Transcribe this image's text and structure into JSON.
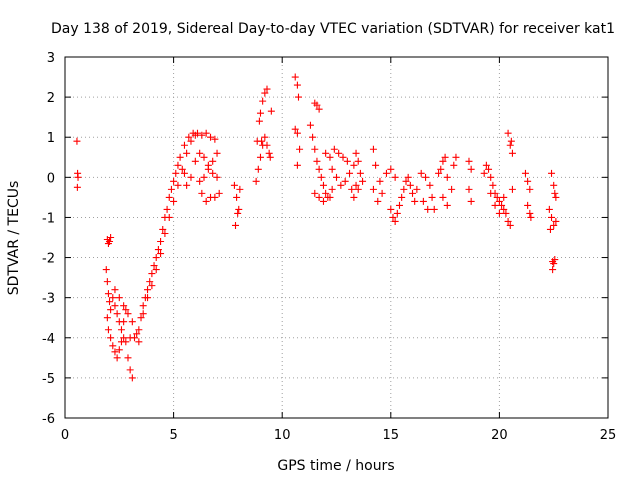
{
  "chart_data": {
    "type": "scatter",
    "title": "Day 138 of 2019, Sidereal Day-to-day VTEC variation (SDTVAR) for receiver kat1",
    "xlabel": "GPS time / hours",
    "ylabel": "SDTVAR / TECUs",
    "xlim": [
      0,
      25
    ],
    "ylim": [
      -6,
      3
    ],
    "xticks": [
      "0",
      "5",
      "10",
      "15",
      "20",
      "25"
    ],
    "yticks": [
      "-6",
      "-5",
      "-4",
      "-3",
      "-2",
      "-1",
      "0",
      "1",
      "2",
      "3"
    ],
    "grid": true,
    "marker": "+",
    "colors": {
      "series": "#ff0000"
    },
    "series": [
      {
        "name": "SDTVAR",
        "points": [
          [
            0.55,
            0.9
          ],
          [
            0.58,
            0.1
          ],
          [
            0.6,
            0.0
          ],
          [
            0.57,
            -0.25
          ],
          [
            1.95,
            -1.55
          ],
          [
            2.0,
            -1.65
          ],
          [
            2.05,
            -1.6
          ],
          [
            2.1,
            -1.5
          ],
          [
            1.9,
            -2.3
          ],
          [
            1.95,
            -2.6
          ],
          [
            2.0,
            -2.9
          ],
          [
            2.05,
            -3.1
          ],
          [
            2.1,
            -3.3
          ],
          [
            1.95,
            -3.5
          ],
          [
            2.0,
            -3.8
          ],
          [
            2.1,
            -4.0
          ],
          [
            2.2,
            -4.2
          ],
          [
            2.3,
            -4.35
          ],
          [
            2.4,
            -4.5
          ],
          [
            2.5,
            -4.3
          ],
          [
            2.6,
            -4.1
          ],
          [
            2.7,
            -4.0
          ],
          [
            2.8,
            -4.1
          ],
          [
            2.9,
            -4.5
          ],
          [
            3.0,
            -4.8
          ],
          [
            3.1,
            -5.0
          ],
          [
            2.2,
            -3.0
          ],
          [
            2.3,
            -3.2
          ],
          [
            2.4,
            -3.4
          ],
          [
            2.5,
            -3.6
          ],
          [
            2.6,
            -3.8
          ],
          [
            2.7,
            -3.6
          ],
          [
            2.8,
            -3.3
          ],
          [
            2.3,
            -2.8
          ],
          [
            2.5,
            -3.0
          ],
          [
            2.7,
            -3.2
          ],
          [
            2.9,
            -3.4
          ],
          [
            3.1,
            -3.6
          ],
          [
            3.3,
            -3.9
          ],
          [
            3.4,
            -4.1
          ],
          [
            3.0,
            -4.0
          ],
          [
            3.2,
            -4.0
          ],
          [
            3.4,
            -3.8
          ],
          [
            3.5,
            -3.5
          ],
          [
            3.6,
            -3.2
          ],
          [
            3.7,
            -3.0
          ],
          [
            3.8,
            -2.8
          ],
          [
            3.9,
            -2.6
          ],
          [
            4.0,
            -2.4
          ],
          [
            4.1,
            -2.2
          ],
          [
            4.2,
            -2.0
          ],
          [
            4.3,
            -1.8
          ],
          [
            4.4,
            -1.6
          ],
          [
            4.5,
            -1.3
          ],
          [
            4.6,
            -1.0
          ],
          [
            4.7,
            -0.8
          ],
          [
            4.8,
            -0.5
          ],
          [
            4.9,
            -0.3
          ],
          [
            5.0,
            -0.1
          ],
          [
            5.1,
            0.1
          ],
          [
            5.2,
            0.3
          ],
          [
            3.6,
            -3.4
          ],
          [
            3.8,
            -3.0
          ],
          [
            4.0,
            -2.7
          ],
          [
            4.2,
            -2.3
          ],
          [
            4.4,
            -1.9
          ],
          [
            4.6,
            -1.4
          ],
          [
            4.8,
            -1.0
          ],
          [
            5.0,
            -0.6
          ],
          [
            5.2,
            -0.2
          ],
          [
            5.4,
            0.2
          ],
          [
            5.6,
            0.6
          ],
          [
            5.8,
            0.9
          ],
          [
            6.0,
            1.05
          ],
          [
            5.3,
            0.5
          ],
          [
            5.5,
            0.8
          ],
          [
            5.7,
            1.0
          ],
          [
            5.9,
            1.1
          ],
          [
            6.1,
            1.1
          ],
          [
            6.3,
            1.05
          ],
          [
            6.5,
            1.1
          ],
          [
            6.7,
            1.0
          ],
          [
            6.9,
            0.95
          ],
          [
            7.0,
            0.6
          ],
          [
            6.8,
            0.4
          ],
          [
            6.6,
            0.2
          ],
          [
            6.4,
            0.0
          ],
          [
            6.2,
            -0.1
          ],
          [
            6.0,
            0.4
          ],
          [
            6.2,
            0.6
          ],
          [
            6.4,
            0.5
          ],
          [
            6.6,
            0.3
          ],
          [
            6.8,
            0.1
          ],
          [
            7.0,
            0.0
          ],
          [
            7.1,
            -0.4
          ],
          [
            6.9,
            -0.5
          ],
          [
            6.7,
            -0.5
          ],
          [
            6.5,
            -0.6
          ],
          [
            6.3,
            -0.4
          ],
          [
            5.8,
            0.0
          ],
          [
            5.6,
            -0.2
          ],
          [
            5.5,
            0.1
          ],
          [
            7.8,
            -0.2
          ],
          [
            7.9,
            -0.5
          ],
          [
            8.0,
            -0.8
          ],
          [
            7.85,
            -1.2
          ],
          [
            7.95,
            -0.9
          ],
          [
            8.05,
            -0.3
          ],
          [
            8.8,
            -0.1
          ],
          [
            8.9,
            0.2
          ],
          [
            9.0,
            0.5
          ],
          [
            9.1,
            0.8
          ],
          [
            9.2,
            1.0
          ],
          [
            9.05,
            0.9
          ],
          [
            8.95,
            1.4
          ],
          [
            9.0,
            1.6
          ],
          [
            9.1,
            1.9
          ],
          [
            9.2,
            2.1
          ],
          [
            9.3,
            2.2
          ],
          [
            8.85,
            0.9
          ],
          [
            9.3,
            0.8
          ],
          [
            9.4,
            0.6
          ],
          [
            9.45,
            0.5
          ],
          [
            9.5,
            1.65
          ],
          [
            10.6,
            2.5
          ],
          [
            10.7,
            2.3
          ],
          [
            10.75,
            2.0
          ],
          [
            10.6,
            1.2
          ],
          [
            10.7,
            1.1
          ],
          [
            10.8,
            0.7
          ],
          [
            10.7,
            0.3
          ],
          [
            11.5,
            1.85
          ],
          [
            11.6,
            1.8
          ],
          [
            11.7,
            1.7
          ],
          [
            11.3,
            1.3
          ],
          [
            11.4,
            1.0
          ],
          [
            11.5,
            0.7
          ],
          [
            11.6,
            0.4
          ],
          [
            11.7,
            0.2
          ],
          [
            11.8,
            0.0
          ],
          [
            11.9,
            -0.2
          ],
          [
            12.0,
            -0.4
          ],
          [
            12.1,
            -0.5
          ],
          [
            11.5,
            -0.4
          ],
          [
            11.7,
            -0.5
          ],
          [
            11.9,
            -0.6
          ],
          [
            12.2,
            -0.5
          ],
          [
            12.3,
            -0.3
          ],
          [
            12.0,
            0.6
          ],
          [
            12.2,
            0.5
          ],
          [
            12.4,
            0.7
          ],
          [
            12.6,
            0.6
          ],
          [
            12.8,
            0.5
          ],
          [
            13.0,
            0.4
          ],
          [
            12.3,
            0.2
          ],
          [
            12.5,
            0.0
          ],
          [
            12.7,
            -0.2
          ],
          [
            12.9,
            -0.1
          ],
          [
            13.1,
            0.1
          ],
          [
            13.3,
            0.3
          ],
          [
            13.4,
            0.6
          ],
          [
            13.5,
            0.4
          ],
          [
            13.6,
            0.1
          ],
          [
            13.7,
            -0.1
          ],
          [
            13.2,
            -0.3
          ],
          [
            13.3,
            -0.5
          ],
          [
            13.4,
            -0.2
          ],
          [
            13.5,
            -0.3
          ],
          [
            14.2,
            0.7
          ],
          [
            14.3,
            0.3
          ],
          [
            14.5,
            -0.1
          ],
          [
            14.2,
            -0.3
          ],
          [
            14.4,
            -0.6
          ],
          [
            14.6,
            -0.4
          ],
          [
            14.8,
            0.1
          ],
          [
            15.0,
            0.2
          ],
          [
            15.2,
            0.0
          ],
          [
            15.0,
            -0.8
          ],
          [
            15.1,
            -1.0
          ],
          [
            15.2,
            -1.1
          ],
          [
            15.3,
            -0.9
          ],
          [
            15.4,
            -0.7
          ],
          [
            15.5,
            -0.5
          ],
          [
            15.6,
            -0.3
          ],
          [
            15.7,
            -0.1
          ],
          [
            15.8,
            0.0
          ],
          [
            15.9,
            -0.2
          ],
          [
            16.0,
            -0.4
          ],
          [
            16.1,
            -0.6
          ],
          [
            16.2,
            -0.3
          ],
          [
            16.4,
            0.1
          ],
          [
            16.6,
            0.0
          ],
          [
            16.8,
            -0.2
          ],
          [
            16.9,
            -0.5
          ],
          [
            17.0,
            -0.8
          ],
          [
            16.7,
            -0.8
          ],
          [
            16.5,
            -0.6
          ],
          [
            17.2,
            0.1
          ],
          [
            17.3,
            0.2
          ],
          [
            17.4,
            0.4
          ],
          [
            17.5,
            0.5
          ],
          [
            17.6,
            0.0
          ],
          [
            17.8,
            -0.3
          ],
          [
            17.9,
            0.3
          ],
          [
            18.0,
            0.5
          ],
          [
            17.4,
            -0.5
          ],
          [
            17.6,
            -0.7
          ],
          [
            18.6,
            0.4
          ],
          [
            18.7,
            0.2
          ],
          [
            18.6,
            -0.3
          ],
          [
            18.7,
            -0.6
          ],
          [
            19.3,
            0.1
          ],
          [
            19.4,
            0.3
          ],
          [
            19.5,
            0.2
          ],
          [
            19.6,
            0.0
          ],
          [
            19.7,
            -0.2
          ],
          [
            19.8,
            -0.4
          ],
          [
            19.9,
            -0.5
          ],
          [
            20.0,
            -0.6
          ],
          [
            20.1,
            -0.7
          ],
          [
            20.2,
            -0.8
          ],
          [
            20.3,
            -0.9
          ],
          [
            20.4,
            -1.1
          ],
          [
            20.5,
            -1.2
          ],
          [
            19.6,
            -0.4
          ],
          [
            19.8,
            -0.7
          ],
          [
            20.0,
            -0.9
          ],
          [
            20.2,
            -0.5
          ],
          [
            20.4,
            1.1
          ],
          [
            20.5,
            0.8
          ],
          [
            20.6,
            0.6
          ],
          [
            20.55,
            0.9
          ],
          [
            20.6,
            -0.3
          ],
          [
            21.2,
            0.1
          ],
          [
            21.3,
            -0.1
          ],
          [
            21.4,
            -0.3
          ],
          [
            21.3,
            -0.7
          ],
          [
            21.4,
            -0.9
          ],
          [
            21.45,
            -1.0
          ],
          [
            22.3,
            -0.8
          ],
          [
            22.4,
            -1.0
          ],
          [
            22.5,
            -1.2
          ],
          [
            22.6,
            -1.1
          ],
          [
            22.35,
            -1.3
          ],
          [
            22.4,
            0.1
          ],
          [
            22.5,
            -0.2
          ],
          [
            22.6,
            -0.5
          ],
          [
            22.55,
            -0.4
          ],
          [
            22.45,
            -2.1
          ],
          [
            22.5,
            -2.15
          ],
          [
            22.55,
            -2.05
          ],
          [
            22.45,
            -2.3
          ]
        ]
      }
    ]
  }
}
